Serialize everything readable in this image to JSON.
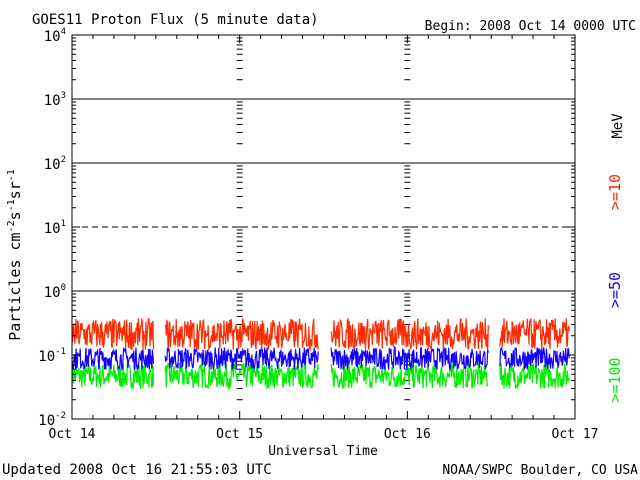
{
  "chart_data": {
    "type": "line",
    "title": "GOES11 Proton Flux (5 minute data)",
    "begin_label": "Begin: 2008 Oct 14 0000 UTC",
    "xlabel": "Universal Time",
    "ylabel_main": "Particles cm",
    "ylabel_sup1": "-2",
    "ylabel_s": "s",
    "ylabel_sup2": "-1",
    "ylabel_sr": "sr",
    "ylabel_sup3": "-1",
    "unit_label": "MeV",
    "x_ticks": [
      "Oct 14",
      "Oct 15",
      "Oct 16",
      "Oct 17"
    ],
    "xlim": [
      0,
      72
    ],
    "y_scale": "log",
    "ylim": [
      0.01,
      10000
    ],
    "y_tick_base": "10",
    "y_tick_exponents": [
      "4",
      "3",
      "2",
      "1",
      "0",
      "-1",
      "-2"
    ],
    "thresholds": [
      1,
      10,
      100,
      1000
    ],
    "threshold_styles": [
      "solid",
      "dashed",
      "solid",
      "solid"
    ],
    "data_gaps_hours": [
      [
        11.7,
        13.3
      ],
      [
        35.3,
        37.0
      ],
      [
        59.6,
        61.2
      ]
    ],
    "x_end_hours": 71.2,
    "series": [
      {
        "name": ">=10",
        "color": "#ff2a00",
        "base": 0.2,
        "spread": 0.5
      },
      {
        "name": ">=50",
        "color": "#1400ff",
        "base": 0.085,
        "spread": 0.35
      },
      {
        "name": ">=100",
        "color": "#00ee00",
        "base": 0.045,
        "spread": 0.4
      }
    ]
  },
  "footer": {
    "updated": "Updated 2008 Oct 16 21:55:03 UTC",
    "source": "NOAA/SWPC Boulder, CO USA"
  }
}
